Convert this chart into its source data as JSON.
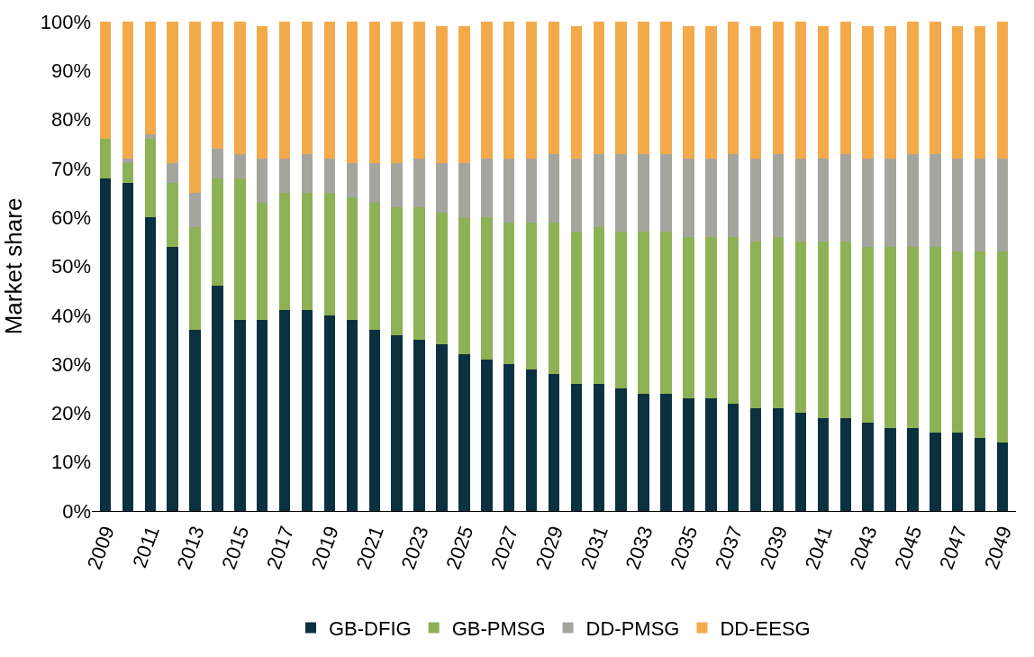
{
  "chart_data": {
    "type": "bar",
    "stacked": true,
    "ylabel": "Market share",
    "categories": [
      "2009",
      null,
      "2011",
      null,
      "2013",
      null,
      "2015",
      null,
      "2017",
      null,
      "2019",
      null,
      "2021",
      null,
      "2023",
      null,
      "2025",
      null,
      "2027",
      null,
      "2029",
      null,
      "2031",
      null,
      "2033",
      null,
      "2035",
      null,
      "2037",
      null,
      "2039",
      null,
      "2041",
      null,
      "2043",
      null,
      "2045",
      null,
      "2047",
      null,
      "2049"
    ],
    "series": [
      {
        "name": "GB-DFIG",
        "color": "#0b3040",
        "values": [
          68,
          67,
          60,
          54,
          37,
          46,
          39,
          39,
          41,
          41,
          40,
          39,
          37,
          36,
          35,
          34,
          32,
          31,
          30,
          29,
          28,
          26,
          26,
          25,
          24,
          24,
          23,
          23,
          22,
          21,
          21,
          20,
          19,
          19,
          18,
          17,
          17,
          16,
          16,
          15,
          14
        ]
      },
      {
        "name": "GB-PMSG",
        "color": "#8db255",
        "values": [
          8,
          4,
          16,
          13,
          21,
          22,
          29,
          24,
          24,
          24,
          25,
          25,
          26,
          26,
          27,
          27,
          28,
          29,
          29,
          30,
          31,
          31,
          32,
          32,
          33,
          33,
          33,
          33,
          34,
          34,
          35,
          35,
          36,
          36,
          36,
          37,
          37,
          38,
          37,
          38,
          39
        ]
      },
      {
        "name": "DD-PMSG",
        "color": "#a5a5a0",
        "values": [
          0,
          1,
          1,
          4,
          7,
          6,
          5,
          9,
          7,
          8,
          7,
          7,
          8,
          9,
          10,
          10,
          11,
          12,
          13,
          13,
          14,
          15,
          15,
          16,
          16,
          16,
          16,
          16,
          17,
          17,
          17,
          17,
          17,
          18,
          18,
          18,
          19,
          19,
          19,
          19,
          19
        ]
      },
      {
        "name": "DD-EESG",
        "color": "#f4aa4a",
        "values": [
          24,
          28,
          23,
          29,
          35,
          26,
          27,
          27,
          28,
          27,
          28,
          29,
          29,
          29,
          28,
          28,
          28,
          28,
          28,
          28,
          27,
          27,
          27,
          27,
          27,
          27,
          27,
          27,
          27,
          27,
          27,
          28,
          27,
          27,
          27,
          27,
          27,
          27,
          27,
          27,
          28
        ]
      }
    ],
    "ylim": [
      0,
      100
    ],
    "yticks": [
      {
        "value": 0,
        "label": "0%"
      },
      {
        "value": 10,
        "label": "10%"
      },
      {
        "value": 20,
        "label": "20%"
      },
      {
        "value": 30,
        "label": "30%"
      },
      {
        "value": 40,
        "label": "40%"
      },
      {
        "value": 50,
        "label": "50%"
      },
      {
        "value": 60,
        "label": "60%"
      },
      {
        "value": 70,
        "label": "70%"
      },
      {
        "value": 80,
        "label": "80%"
      },
      {
        "value": 90,
        "label": "90%"
      },
      {
        "value": 100,
        "label": "100%"
      }
    ],
    "legend": "bottom",
    "grid": false
  }
}
